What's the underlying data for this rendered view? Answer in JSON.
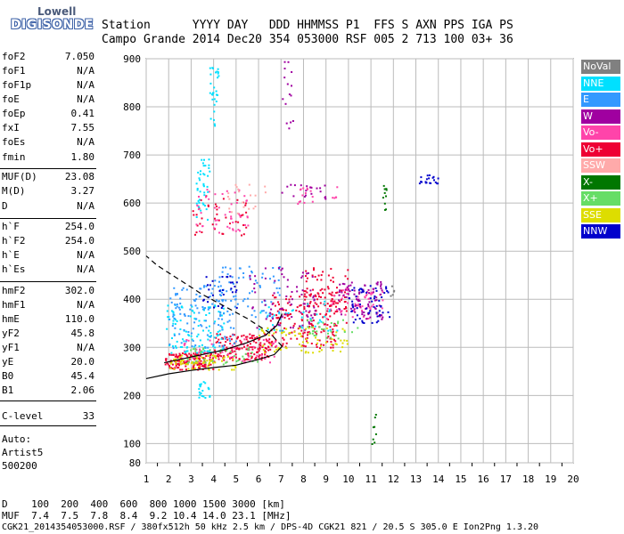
{
  "logo": {
    "top": "Lowell",
    "bottom": "DIGISONDE"
  },
  "header": {
    "row1": "Station      YYYY DAY   DDD HHMMSS P1  FFS S AXN PPS IGA PS",
    "row2": "Campo Grande 2014 Dec20 354 053000 RSF 005 2 713 100 03+ 36"
  },
  "params": [
    {
      "name": "foF2",
      "value": "7.050"
    },
    {
      "name": "foF1",
      "value": "N/A"
    },
    {
      "name": "foF1p",
      "value": "N/A"
    },
    {
      "name": "foE",
      "value": "N/A"
    },
    {
      "name": "foEp",
      "value": "0.41"
    },
    {
      "name": "fxI",
      "value": "7.55"
    },
    {
      "name": "foEs",
      "value": "N/A"
    },
    {
      "name": "fmin",
      "value": "1.80"
    },
    {
      "name": "MUF(D)",
      "value": "23.08"
    },
    {
      "name": "M(D)",
      "value": "3.27"
    },
    {
      "name": "D",
      "value": "N/A"
    },
    {
      "name": "h`F",
      "value": "254.0"
    },
    {
      "name": "h`F2",
      "value": "254.0"
    },
    {
      "name": "h`E",
      "value": "N/A"
    },
    {
      "name": "h`Es",
      "value": "N/A"
    },
    {
      "name": "hmF2",
      "value": "302.0"
    },
    {
      "name": "hmF1",
      "value": "N/A"
    },
    {
      "name": "hmE",
      "value": "110.0"
    },
    {
      "name": "yF2",
      "value": "45.8"
    },
    {
      "name": "yF1",
      "value": "N/A"
    },
    {
      "name": "yE",
      "value": "20.0"
    },
    {
      "name": "B0",
      "value": "45.4"
    },
    {
      "name": "B1",
      "value": "2.06"
    },
    {
      "name": "C-level",
      "value": "33"
    }
  ],
  "auto": {
    "line1": "Auto:",
    "line2": "Artist5",
    "line3": "500200"
  },
  "legend": [
    {
      "label": "NoVal",
      "color": "#808080"
    },
    {
      "label": "NNE",
      "color": "#00e0ff"
    },
    {
      "label": "E",
      "color": "#3399ff"
    },
    {
      "label": "W",
      "color": "#a000a0"
    },
    {
      "label": "Vo-",
      "color": "#ff44aa"
    },
    {
      "label": "Vo+",
      "color": "#ee0033"
    },
    {
      "label": "SSW",
      "color": "#ffaaaa"
    },
    {
      "label": "X-",
      "color": "#007700"
    },
    {
      "label": "X+",
      "color": "#66dd66"
    },
    {
      "label": "SSE",
      "color": "#dddd00"
    },
    {
      "label": "NNW",
      "color": "#0000cc"
    }
  ],
  "bottom": {
    "d_row": "D    100  200  400  600  800 1000 1500 3000 [km]",
    "muf_row": "MUF  7.4  7.5  7.8  8.4  9.2 10.4 14.0 23.1 [MHz]",
    "footer": "CGK21_2014354053000.RSF / 380fx512h 50 kHz 2.5 km / DPS-4D CGK21 821 / 20.5 S 305.0 E Ion2Png 1.3.20"
  },
  "chart_data": {
    "type": "scatter",
    "title": "",
    "xlabel": "",
    "ylabel": "",
    "xlim": [
      1,
      20
    ],
    "ylim": [
      80,
      900
    ],
    "x_ticks": [
      1,
      2,
      3,
      4,
      5,
      6,
      7,
      8,
      9,
      10,
      11,
      12,
      13,
      14,
      15,
      16,
      17,
      18,
      19,
      20
    ],
    "y_ticks": [
      80,
      100,
      200,
      300,
      400,
      500,
      600,
      700,
      800,
      900
    ],
    "grid": true,
    "legend_position": "right",
    "series": [
      {
        "name": "Vo+",
        "color": "#ee0033",
        "clusters": [
          {
            "x": [
              1.8,
              4.0
            ],
            "y": [
              255,
              290
            ],
            "n": 140
          },
          {
            "x": [
              4.0,
              6.5
            ],
            "y": [
              275,
              330
            ],
            "n": 150
          },
          {
            "x": [
              6.5,
              9.5
            ],
            "y": [
              300,
              420
            ],
            "n": 170
          },
          {
            "x": [
              8.0,
              10.0
            ],
            "y": [
              340,
              470
            ],
            "n": 80
          },
          {
            "x": [
              3.0,
              5.5
            ],
            "y": [
              530,
              620
            ],
            "n": 40
          }
        ]
      },
      {
        "name": "Vo-",
        "color": "#ff44aa",
        "clusters": [
          {
            "x": [
              2.5,
              7.0
            ],
            "y": [
              270,
              320
            ],
            "n": 60
          },
          {
            "x": [
              3.0,
              5.5
            ],
            "y": [
              540,
              630
            ],
            "n": 50
          },
          {
            "x": [
              9.0,
              11.5
            ],
            "y": [
              360,
              430
            ],
            "n": 60
          },
          {
            "x": [
              7.5,
              9.5
            ],
            "y": [
              600,
              640
            ],
            "n": 20
          }
        ]
      },
      {
        "name": "NNE",
        "color": "#00e0ff",
        "clusters": [
          {
            "x": [
              1.8,
              4.5
            ],
            "y": [
              290,
              390
            ],
            "n": 110
          },
          {
            "x": [
              3.2,
              3.8
            ],
            "y": [
              560,
              700
            ],
            "n": 40
          },
          {
            "x": [
              3.8,
              4.2
            ],
            "y": [
              760,
              900
            ],
            "n": 30
          },
          {
            "x": [
              3.3,
              3.8
            ],
            "y": [
              190,
              230
            ],
            "n": 20
          },
          {
            "x": [
              6.0,
              9.5
            ],
            "y": [
              330,
              400
            ],
            "n": 40
          }
        ]
      },
      {
        "name": "E",
        "color": "#3399ff",
        "clusters": [
          {
            "x": [
              2.0,
              5.0
            ],
            "y": [
              300,
              430
            ],
            "n": 120
          },
          {
            "x": [
              4.0,
              7.0
            ],
            "y": [
              360,
              470
            ],
            "n": 70
          }
        ]
      },
      {
        "name": "W",
        "color": "#a000a0",
        "clusters": [
          {
            "x": [
              5.5,
              8.5
            ],
            "y": [
              330,
              470
            ],
            "n": 80
          },
          {
            "x": [
              9.5,
              11.5
            ],
            "y": [
              360,
              440
            ],
            "n": 80
          },
          {
            "x": [
              7.0,
              9.0
            ],
            "y": [
              610,
              640
            ],
            "n": 20
          },
          {
            "x": [
              7.0,
              7.5
            ],
            "y": [
              750,
              900
            ],
            "n": 15
          }
        ]
      },
      {
        "name": "SSE",
        "color": "#dddd00",
        "clusters": [
          {
            "x": [
              2.0,
              5.0
            ],
            "y": [
              255,
              285
            ],
            "n": 70
          },
          {
            "x": [
              6.0,
              10.0
            ],
            "y": [
              290,
              345
            ],
            "n": 70
          }
        ]
      },
      {
        "name": "X+",
        "color": "#66dd66",
        "clusters": [
          {
            "x": [
              2.5,
              6.0
            ],
            "y": [
              265,
              300
            ],
            "n": 40
          },
          {
            "x": [
              8.0,
              10.5
            ],
            "y": [
              320,
              360
            ],
            "n": 30
          }
        ]
      },
      {
        "name": "X-",
        "color": "#007700",
        "clusters": [
          {
            "x": [
              11.5,
              11.7
            ],
            "y": [
              570,
              640
            ],
            "n": 10
          },
          {
            "x": [
              11.0,
              11.2
            ],
            "y": [
              90,
              170
            ],
            "n": 8
          }
        ]
      },
      {
        "name": "NNW",
        "color": "#0000cc",
        "clusters": [
          {
            "x": [
              10.0,
              11.8
            ],
            "y": [
              350,
              430
            ],
            "n": 60
          },
          {
            "x": [
              13.0,
              14.0
            ],
            "y": [
              640,
              660
            ],
            "n": 20
          },
          {
            "x": [
              3.5,
              5.0
            ],
            "y": [
              380,
              450
            ],
            "n": 30
          }
        ]
      },
      {
        "name": "SSW",
        "color": "#ffaaaa",
        "clusters": [
          {
            "x": [
              4.5,
              6.5
            ],
            "y": [
              580,
              640
            ],
            "n": 20
          }
        ]
      },
      {
        "name": "NoVal",
        "color": "#808080",
        "clusters": [
          {
            "x": [
              11.8,
              12.0
            ],
            "y": [
              400,
              430
            ],
            "n": 5
          }
        ]
      }
    ],
    "profile_curves": [
      {
        "name": "virtual-height-trace",
        "style": "solid",
        "points": [
          [
            1.8,
            268
          ],
          [
            2.5,
            275
          ],
          [
            3.5,
            285
          ],
          [
            4.5,
            295
          ],
          [
            5.5,
            310
          ],
          [
            6.3,
            325
          ],
          [
            6.8,
            345
          ],
          [
            7.05,
            370
          ]
        ]
      },
      {
        "name": "true-height-profile",
        "style": "solid",
        "points": [
          [
            1.0,
            235
          ],
          [
            2.0,
            245
          ],
          [
            3.0,
            252
          ],
          [
            4.0,
            258
          ],
          [
            5.0,
            263
          ],
          [
            6.0,
            275
          ],
          [
            6.7,
            285
          ],
          [
            7.05,
            302
          ]
        ]
      },
      {
        "name": "extrapolated-topside",
        "style": "dashed",
        "points": [
          [
            7.05,
            302
          ],
          [
            6.5,
            330
          ],
          [
            5.5,
            360
          ],
          [
            4.5,
            385
          ],
          [
            3.5,
            410
          ],
          [
            2.5,
            440
          ],
          [
            1.5,
            470
          ],
          [
            1.0,
            490
          ]
        ]
      }
    ]
  }
}
